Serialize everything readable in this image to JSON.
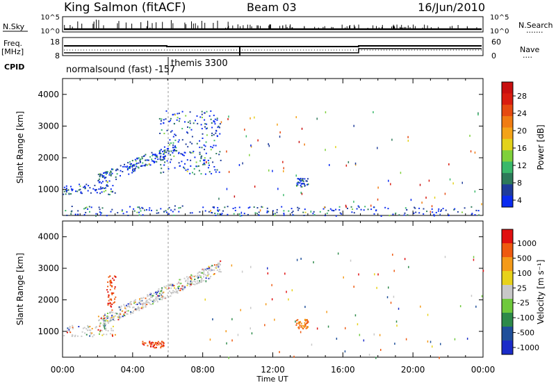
{
  "header": {
    "station": "King Salmon (fitACF)",
    "beam": "Beam 03",
    "date": "16/Jun/2010"
  },
  "strip_labels": {
    "nsky": "N.Sky",
    "nsearch": "N.Search",
    "nsearch_dots": "·······",
    "freq_line1": "Freq.",
    "freq_line2": "[MHz]",
    "nave": "Nave",
    "nave_dots": "····",
    "cpid": "CPID",
    "nsky_ticks": [
      "10^5",
      "10^0"
    ],
    "nsearch_ticks": [
      "10^5",
      "10^0"
    ],
    "freq_ticks": [
      "18",
      "8"
    ],
    "nave_ticks": [
      "60",
      "0"
    ]
  },
  "cpid_labels": [
    "normalsound (fast) -157",
    "themis 3300"
  ],
  "x_axis": {
    "label": "Time UT",
    "ticks": [
      "00:00",
      "04:00",
      "08:00",
      "12:00",
      "16:00",
      "20:00",
      "00:00"
    ]
  },
  "chart_data": [
    {
      "type": "heatmap",
      "panel": "power",
      "ylabel": "Slant Range [km]",
      "yticks": [
        1000,
        2000,
        3000,
        4000
      ],
      "ylim": [
        180,
        4500
      ],
      "xlim_hours": [
        0,
        24
      ],
      "colorbar": {
        "label": "Power [dB]",
        "ticks": [
          "28",
          "24",
          "20",
          "16",
          "12",
          "8",
          "4"
        ],
        "colors": [
          "#0a2bf0",
          "#1f3c9a",
          "#2d7a5a",
          "#3ab86a",
          "#7fd13b",
          "#e3d21a",
          "#f4a318",
          "#f07c12",
          "#e64a10",
          "#d91c0f",
          "#c80f0f"
        ]
      },
      "features": [
        {
          "name": "near-range ground scatter",
          "t": [
            0,
            24
          ],
          "range_km": [
            180,
            500
          ]
        },
        {
          "name": "evening scatter band",
          "t": [
            0,
            3
          ],
          "range_km": [
            850,
            1200
          ]
        },
        {
          "name": "rising scatter arc",
          "t": [
            2,
            6.5
          ],
          "range_km": [
            1300,
            2600
          ]
        },
        {
          "name": "scatter plume",
          "t": [
            5.5,
            9
          ],
          "range_km": [
            1500,
            3500
          ]
        },
        {
          "name": "patch",
          "t": [
            13.3,
            14
          ],
          "range_km": [
            1100,
            1400
          ]
        }
      ]
    },
    {
      "type": "heatmap",
      "panel": "velocity",
      "ylabel": "Slant Range [km]",
      "yticks": [
        1000,
        2000,
        3000,
        4000
      ],
      "ylim": [
        180,
        4500
      ],
      "xlim_hours": [
        0,
        24
      ],
      "colorbar": {
        "label": "Velocity [m s⁻¹]",
        "ticks": [
          "1000",
          "500",
          "100",
          "25",
          "-25",
          "-100",
          "-500",
          "-1000"
        ],
        "colors": [
          "#1a2bc8",
          "#1f4f9a",
          "#2d8a4a",
          "#6fc93c",
          "#c8c8c8",
          "#e8d21a",
          "#f49a18",
          "#ee5a10",
          "#e01010"
        ]
      },
      "features": [
        {
          "name": "ground scatter band",
          "t": [
            0,
            3
          ],
          "range_km": [
            850,
            1200
          ]
        },
        {
          "name": "red echo patch",
          "t": [
            4.5,
            5.8
          ],
          "range_km": [
            500,
            700
          ]
        },
        {
          "name": "red streak",
          "t": [
            2.5,
            3
          ],
          "range_km": [
            1800,
            2800
          ]
        },
        {
          "name": "mixed scatter arc",
          "t": [
            2,
            9
          ],
          "range_km": [
            1300,
            3500
          ]
        },
        {
          "name": "orange patch",
          "t": [
            13.3,
            14
          ],
          "range_km": [
            1100,
            1400
          ]
        }
      ]
    }
  ]
}
